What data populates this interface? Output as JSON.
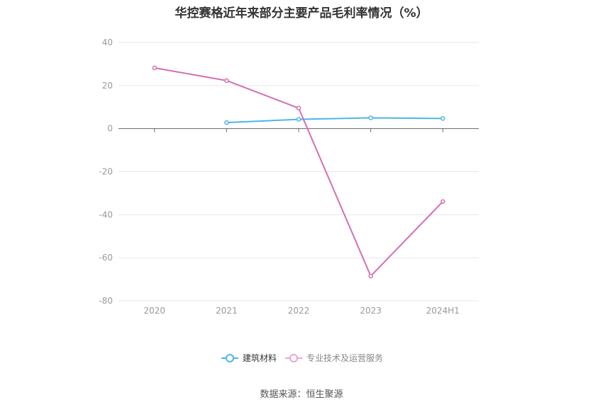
{
  "chart_data": {
    "type": "line",
    "title": "华控赛格近年来部分主要产品毛利率情况（%）",
    "categories": [
      "2020",
      "2021",
      "2022",
      "2023",
      "2024H1"
    ],
    "series": [
      {
        "name": "建筑材料",
        "color": "#4db6e8",
        "values": [
          null,
          2.8,
          4.3,
          5.0,
          4.7
        ]
      },
      {
        "name": "专业技术及运营服务",
        "color": "#d46eb3",
        "values": [
          28.2,
          22.3,
          9.5,
          -68.5,
          -33.9
        ]
      }
    ],
    "y_ticks": [
      40,
      20,
      0,
      -20,
      -40,
      -60,
      -80
    ],
    "ylim": [
      -80,
      40
    ],
    "grid": true,
    "legend_position": "bottom"
  },
  "source": "数据来源：恒生聚源"
}
